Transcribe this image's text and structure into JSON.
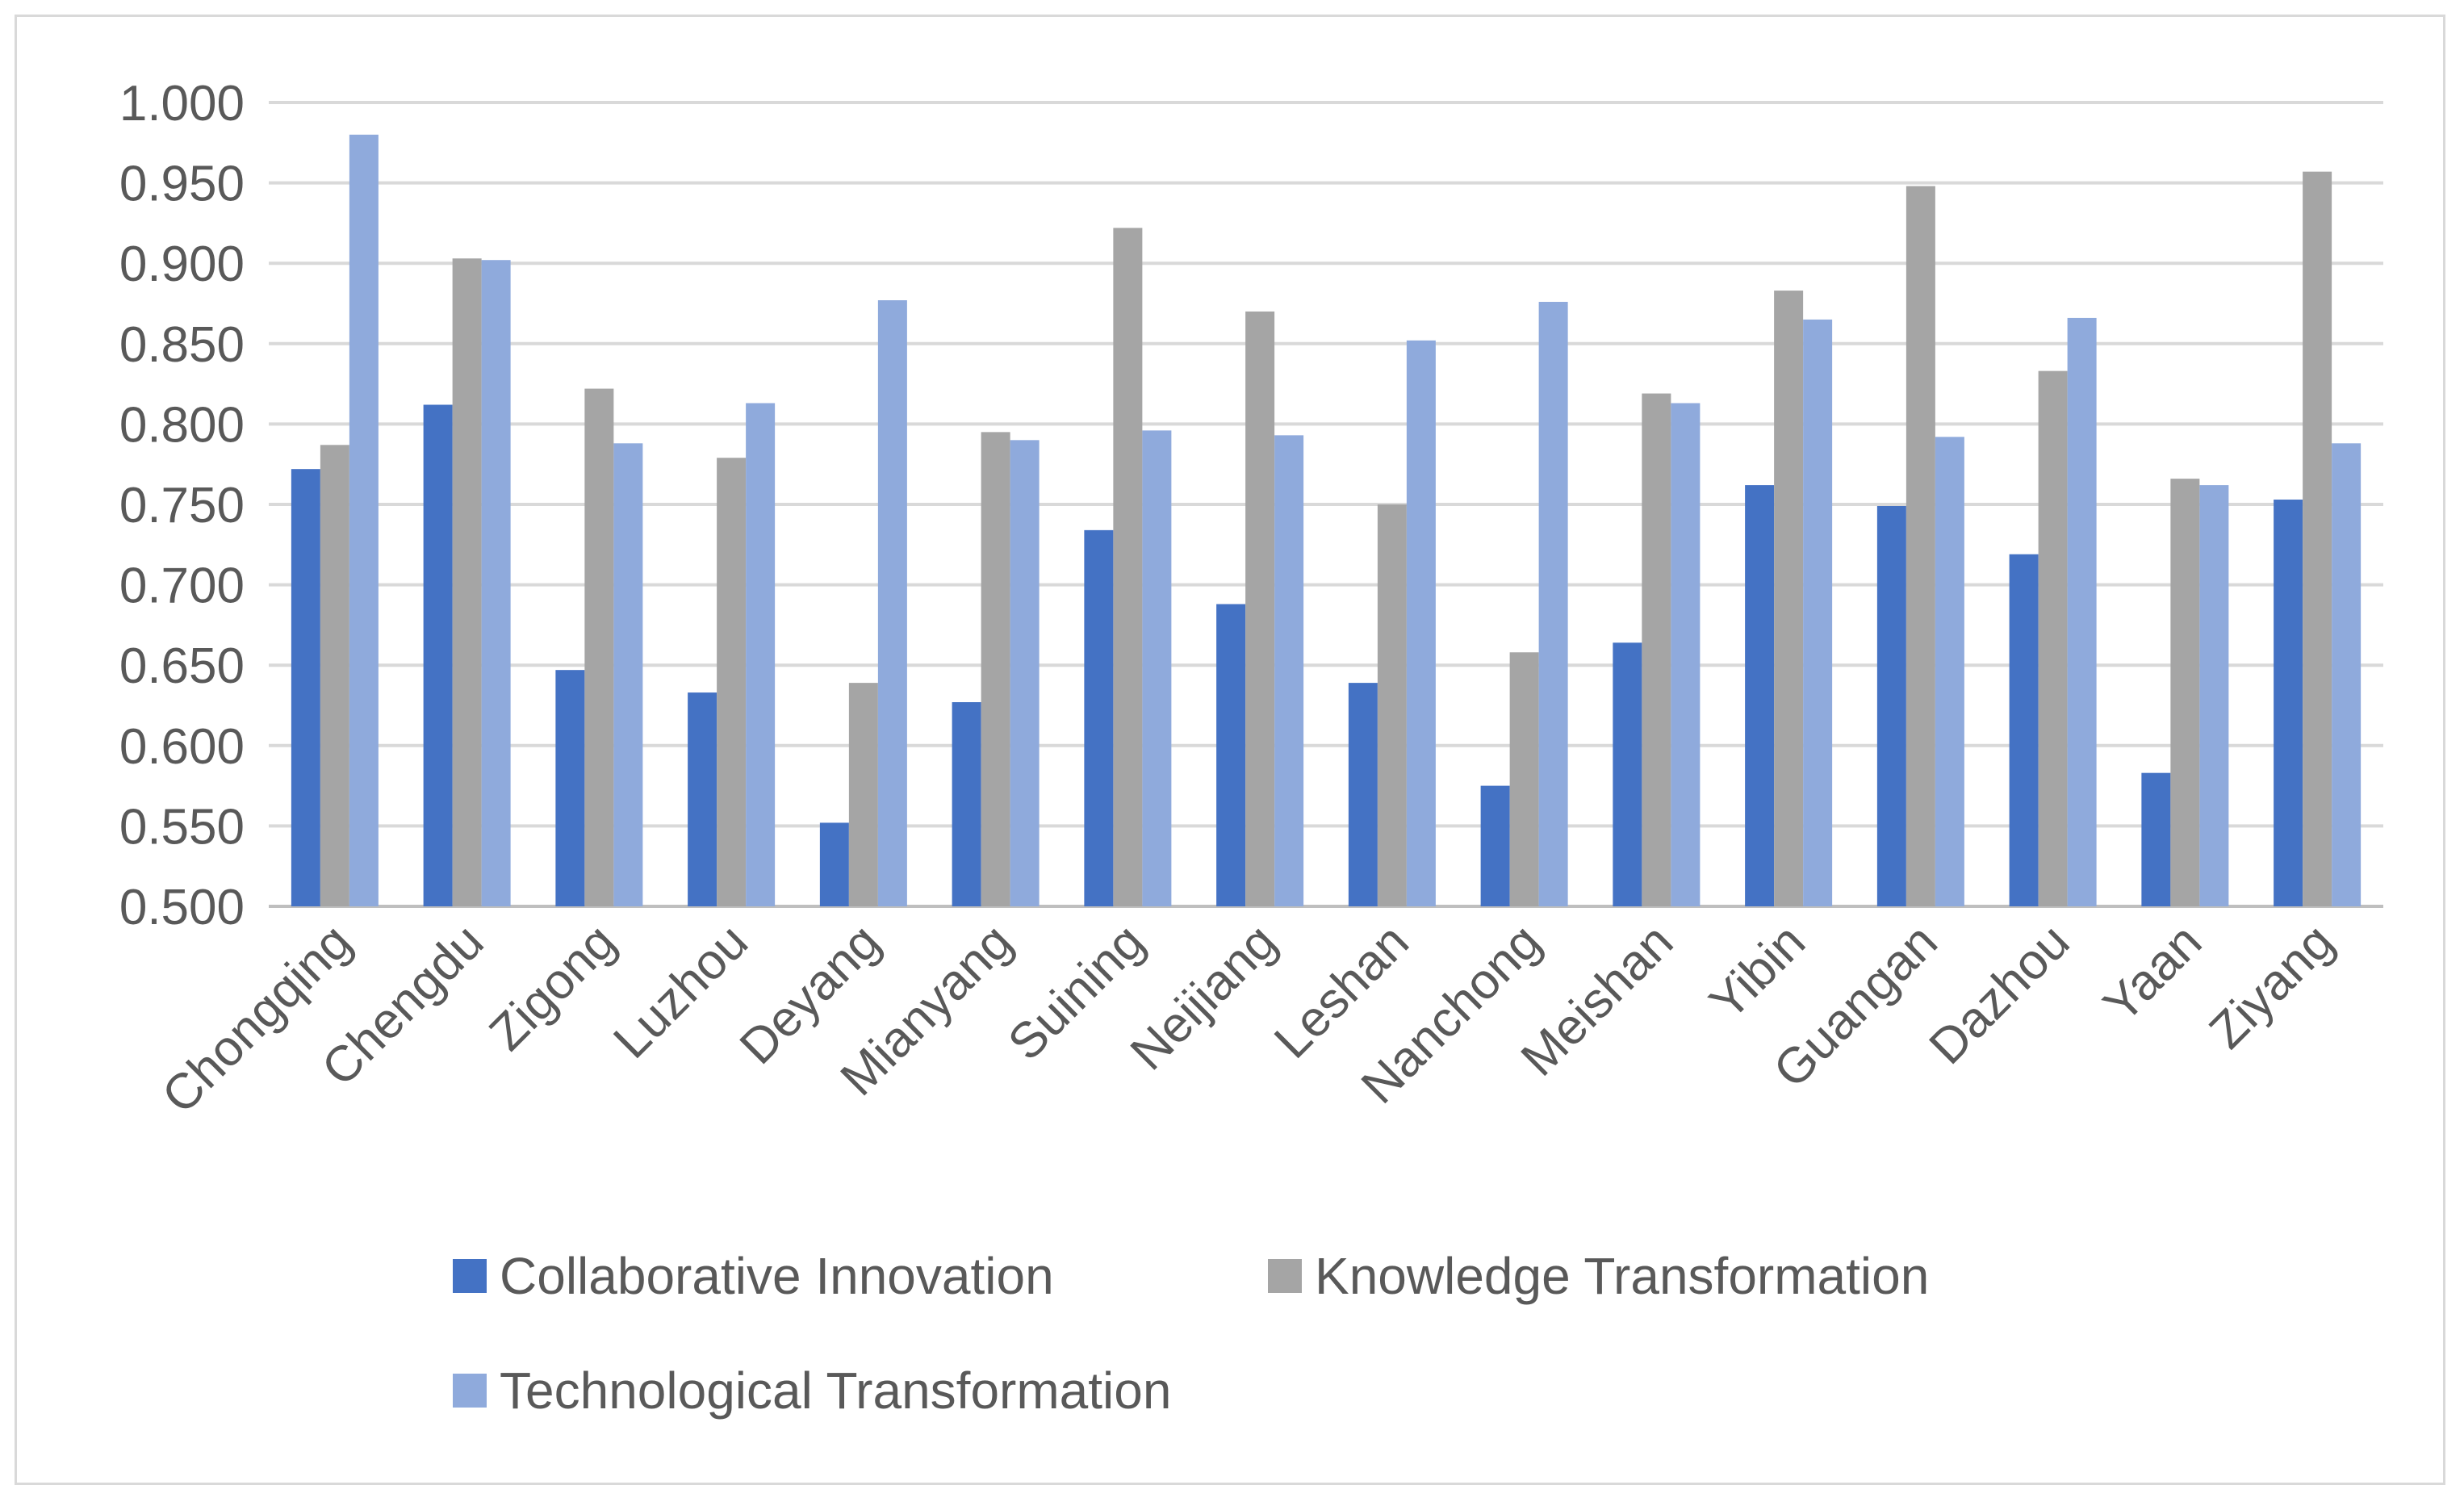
{
  "chart_data": {
    "type": "bar",
    "title": "",
    "xlabel": "",
    "ylabel": "",
    "ylim": [
      0.5,
      1.0
    ],
    "ytick_step": 0.05,
    "ytick_labels": [
      "0.500",
      "0.550",
      "0.600",
      "0.650",
      "0.700",
      "0.750",
      "0.800",
      "0.850",
      "0.900",
      "0.950",
      "1.000"
    ],
    "grid": true,
    "legend_position": "bottom",
    "categories": [
      "Chongqing",
      "Chengdu",
      "Zigong",
      "Luzhou",
      "Deyang",
      "Mianyang",
      "Suining",
      "Neijiang",
      "Leshan",
      "Nanchong",
      "Meishan",
      "Yibin",
      "Guangan",
      "Dazhou",
      "Yaan",
      "Ziyang"
    ],
    "series": [
      {
        "name": "Collaborative Innovation",
        "color": "#4472c4",
        "values": [
          0.772,
          0.812,
          0.647,
          0.633,
          0.552,
          0.627,
          0.734,
          0.688,
          0.639,
          0.575,
          0.664,
          0.762,
          0.749,
          0.719,
          0.583,
          0.753
        ]
      },
      {
        "name": "Knowledge Transformation",
        "color": "#a5a5a5",
        "values": [
          0.787,
          0.903,
          0.822,
          0.779,
          0.639,
          0.795,
          0.922,
          0.87,
          0.75,
          0.658,
          0.819,
          0.883,
          0.948,
          0.833,
          0.766,
          0.957
        ]
      },
      {
        "name": "Technological Transformation",
        "color": "#8faadc",
        "values": [
          0.98,
          0.902,
          0.788,
          0.813,
          0.877,
          0.79,
          0.796,
          0.793,
          0.852,
          0.876,
          0.813,
          0.865,
          0.792,
          0.866,
          0.762,
          0.788
        ]
      }
    ]
  }
}
